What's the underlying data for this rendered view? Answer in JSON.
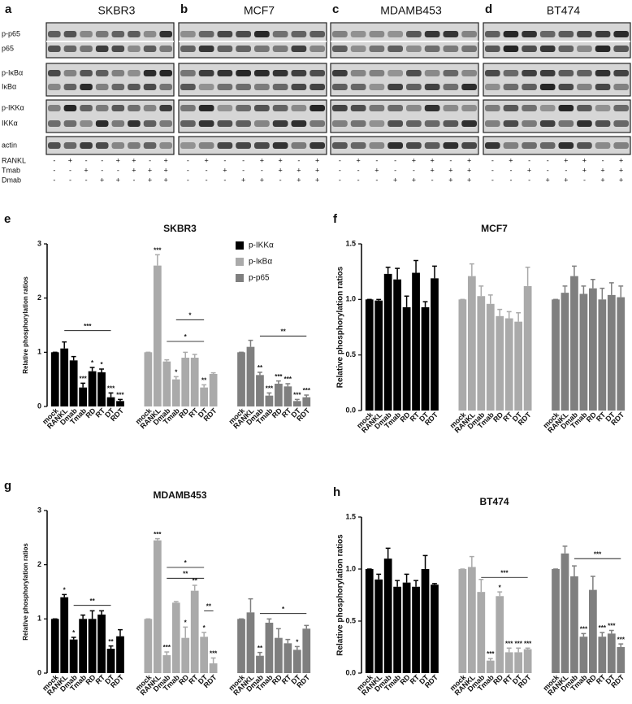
{
  "blots": {
    "panels": [
      {
        "letter": "a",
        "title": "SKBR3"
      },
      {
        "letter": "b",
        "title": "MCF7"
      },
      {
        "letter": "c",
        "title": "MDAMB453"
      },
      {
        "letter": "d",
        "title": "BT474"
      }
    ],
    "row_labels": [
      "p-p65",
      "p65",
      "p-IκBα",
      "IκBα",
      "p-IKKα",
      "IKKα",
      "actin"
    ],
    "treatments": [
      {
        "name": "RANKL",
        "signs": [
          "-",
          "+",
          "-",
          "-",
          "+",
          "+",
          "-",
          "+"
        ]
      },
      {
        "name": "Tmab",
        "signs": [
          "-",
          "-",
          "+",
          "-",
          "-",
          "+",
          "+",
          "+"
        ]
      },
      {
        "name": "Dmab",
        "signs": [
          "-",
          "-",
          "-",
          "+",
          "+",
          "-",
          "+",
          "+"
        ]
      }
    ]
  },
  "chart_data": [
    {
      "type": "bar",
      "letter": "e",
      "title": "SKBR3",
      "ylabel": "Relative phosphorylation ratios",
      "categories": [
        "mock",
        "RANKL",
        "Dmab",
        "Tmab",
        "RD",
        "RT",
        "DT",
        "RDT"
      ],
      "ylim": [
        0,
        3
      ],
      "yticks": [
        0,
        1,
        2,
        3
      ],
      "series": [
        {
          "name": "p-IKKα",
          "color": "#000000",
          "values": [
            1.0,
            1.07,
            0.85,
            0.35,
            0.65,
            0.63,
            0.17,
            0.1
          ],
          "errors": [
            0,
            0.12,
            0.07,
            0.08,
            0.07,
            0.06,
            0.08,
            0.03
          ],
          "stars": [
            null,
            null,
            null,
            "***",
            "*",
            "*",
            "***",
            "***"
          ]
        },
        {
          "name": "p-IκBα",
          "color": "#aaaaaa",
          "values": [
            1.0,
            2.6,
            0.83,
            0.5,
            0.9,
            0.9,
            0.35,
            0.6
          ],
          "errors": [
            0,
            0.2,
            0.03,
            0.05,
            0.1,
            0.06,
            0.05,
            0.02
          ],
          "stars": [
            null,
            "***",
            null,
            "*",
            null,
            null,
            "**",
            null
          ]
        },
        {
          "name": "p-p65",
          "color": "#7f7f7f",
          "values": [
            1.0,
            1.1,
            0.58,
            0.2,
            0.42,
            0.37,
            0.1,
            0.17
          ],
          "errors": [
            0,
            0.12,
            0.05,
            0.05,
            0.05,
            0.05,
            0.03,
            0.04
          ],
          "stars": [
            null,
            null,
            "**",
            "***",
            "***",
            "***",
            "***",
            "***"
          ]
        }
      ],
      "brackets": [
        {
          "label": "***",
          "series": 0,
          "from": 1,
          "to": 6,
          "y": 1.4
        },
        {
          "label": "*",
          "series": 1,
          "from": 3,
          "to": 6,
          "y": 1.6
        },
        {
          "label": "*",
          "series": 1,
          "from": 2,
          "to": 6,
          "y": 1.2
        },
        {
          "label": "**",
          "series": 2,
          "from": 2,
          "to": 7,
          "y": 1.3
        }
      ]
    },
    {
      "type": "bar",
      "letter": "f",
      "title": "MCF7",
      "ylabel": "Relative phosphorylation ratios",
      "categories": [
        "mock",
        "RANKL",
        "Dmab",
        "Tmab",
        "RD",
        "RT",
        "DT",
        "RDT"
      ],
      "ylim": [
        0,
        1.5
      ],
      "yticks": [
        {
          "value": 0,
          "label": "0.0"
        },
        0.5,
        {
          "value": 1,
          "label": "1.0"
        },
        1.5
      ],
      "series": [
        {
          "color": "#000000",
          "values": [
            1.0,
            0.99,
            1.23,
            1.18,
            0.93,
            1.24,
            0.93,
            1.19
          ],
          "errors": [
            0,
            0.01,
            0.06,
            0.1,
            0.1,
            0.11,
            0.05,
            0.11
          ]
        },
        {
          "color": "#aaaaaa",
          "values": [
            1.0,
            1.21,
            1.03,
            0.96,
            0.85,
            0.83,
            0.8,
            1.12
          ],
          "errors": [
            0,
            0.11,
            0.09,
            0.08,
            0.06,
            0.06,
            0.08,
            0.17
          ]
        },
        {
          "color": "#7f7f7f",
          "values": [
            1.0,
            1.06,
            1.21,
            1.05,
            1.1,
            1.0,
            1.04,
            1.02
          ],
          "errors": [
            0,
            0.06,
            0.09,
            0.07,
            0.08,
            0.1,
            0.11,
            0.1
          ]
        }
      ]
    },
    {
      "type": "bar",
      "letter": "g",
      "title": "MDAMB453",
      "ylabel": "Relative phosphorylation ratios",
      "categories": [
        "mock",
        "RANKL",
        "Dmab",
        "Tmab",
        "RD",
        "RT",
        "DT",
        "RDT"
      ],
      "ylim": [
        0,
        3
      ],
      "yticks": [
        0,
        1,
        2,
        3
      ],
      "series": [
        {
          "color": "#000000",
          "values": [
            1.0,
            1.4,
            0.62,
            1.0,
            1.0,
            1.08,
            0.45,
            0.68
          ],
          "errors": [
            0,
            0.05,
            0.04,
            0.07,
            0.15,
            0.07,
            0.05,
            0.12
          ],
          "stars": [
            null,
            "*",
            "*",
            null,
            null,
            null,
            "**",
            null
          ]
        },
        {
          "color": "#aaaaaa",
          "values": [
            1.0,
            2.45,
            0.33,
            1.3,
            0.65,
            1.52,
            0.67,
            0.18
          ],
          "errors": [
            0,
            0.03,
            0.06,
            0.02,
            0.2,
            0.1,
            0.08,
            0.1
          ],
          "stars": [
            null,
            "***",
            "***",
            null,
            "*",
            "**",
            "*",
            "***"
          ]
        },
        {
          "color": "#7f7f7f",
          "values": [
            1.0,
            1.12,
            0.32,
            0.93,
            0.65,
            0.55,
            0.43,
            0.82
          ],
          "errors": [
            0,
            0.25,
            0.06,
            0.07,
            0.17,
            0.07,
            0.06,
            0.06
          ],
          "stars": [
            null,
            null,
            "**",
            null,
            null,
            null,
            "*",
            null
          ]
        }
      ],
      "brackets": [
        {
          "label": "**",
          "series": 0,
          "from": 2,
          "to": 6,
          "y": 1.25
        },
        {
          "label": "*",
          "series": 1,
          "from": 2,
          "to": 6,
          "y": 1.95
        },
        {
          "label": "**",
          "series": 1,
          "from": 2,
          "to": 6,
          "y": 1.75
        },
        {
          "label": "**",
          "series": 1,
          "from": 6,
          "to": 7,
          "y": 1.15
        },
        {
          "label": "*",
          "series": 2,
          "from": 2,
          "to": 7,
          "y": 1.1
        }
      ]
    },
    {
      "type": "bar",
      "letter": "h",
      "title": "BT474",
      "ylabel": "Relative phosphorylation ratios",
      "categories": [
        "mock",
        "RANKL",
        "Dmab",
        "Tmab",
        "RD",
        "RT",
        "DT",
        "RDT"
      ],
      "ylim": [
        0,
        1.5
      ],
      "yticks": [
        {
          "value": 0,
          "label": "0.0"
        },
        0.5,
        {
          "value": 1,
          "label": "1.0"
        },
        1.5
      ],
      "series": [
        {
          "color": "#000000",
          "values": [
            1.0,
            0.9,
            1.1,
            0.83,
            0.87,
            0.83,
            1.0,
            0.85
          ],
          "errors": [
            0,
            0.05,
            0.1,
            0.06,
            0.08,
            0.06,
            0.13,
            0.01
          ]
        },
        {
          "color": "#aaaaaa",
          "values": [
            1.0,
            1.02,
            0.78,
            0.12,
            0.74,
            0.2,
            0.2,
            0.23
          ],
          "errors": [
            0,
            0.1,
            0.12,
            0.02,
            0.04,
            0.04,
            0.04,
            0.01
          ],
          "stars": [
            null,
            null,
            null,
            "***",
            "*",
            "***",
            "***",
            "***"
          ]
        },
        {
          "color": "#7f7f7f",
          "values": [
            1.0,
            1.15,
            0.93,
            0.35,
            0.8,
            0.35,
            0.38,
            0.25
          ],
          "errors": [
            0,
            0.07,
            0.1,
            0.03,
            0.13,
            0.04,
            0.03,
            0.03
          ],
          "stars": [
            null,
            null,
            null,
            "***",
            null,
            "***",
            "***",
            "***"
          ]
        }
      ],
      "brackets": [
        {
          "label": "***",
          "series": 1,
          "from": 2,
          "to": 7,
          "y": 0.92
        },
        {
          "label": "***",
          "series": 2,
          "from": 2,
          "to": 7,
          "y": 1.1
        }
      ]
    }
  ]
}
